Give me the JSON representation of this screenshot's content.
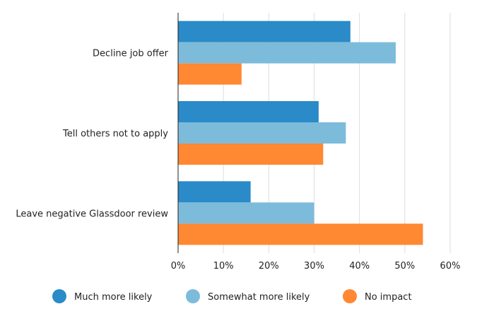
{
  "chart_data": {
    "type": "bar",
    "orientation": "horizontal",
    "title": "",
    "xlabel": "",
    "ylabel": "",
    "categories": [
      "Decline job offer",
      "Tell others not to apply",
      "Leave negative Glassdoor review"
    ],
    "series": [
      {
        "name": "Much more likely",
        "color": "#2a8bc8",
        "values": [
          38,
          31,
          16
        ]
      },
      {
        "name": "Somewhat more likely",
        "color": "#7dbbdb",
        "values": [
          48,
          37,
          30
        ]
      },
      {
        "name": "No impact",
        "color": "#ff8833",
        "values": [
          14,
          32,
          54
        ]
      }
    ],
    "xlim": [
      0,
      60
    ],
    "xticks": [
      "0%",
      "10%",
      "20%",
      "30%",
      "40%",
      "50%",
      "60%"
    ],
    "grid": true,
    "legend_position": "bottom"
  }
}
